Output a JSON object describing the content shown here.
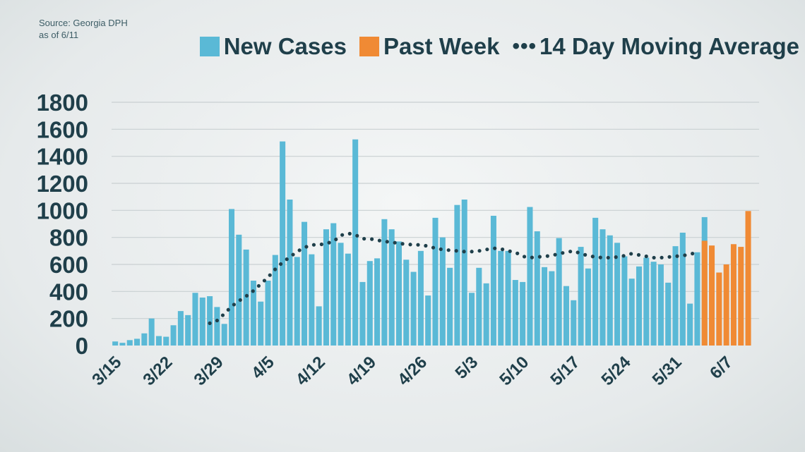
{
  "source": {
    "line1": "Source: Georgia DPH",
    "line2": "as of 6/11"
  },
  "legend": {
    "new_cases": "New Cases",
    "past_week": "Past Week",
    "moving_avg": "14 Day Moving Average",
    "dots": "•••"
  },
  "colors": {
    "new_cases": "#5ab9d6",
    "past_week": "#f08a34",
    "moving_avg": "#1f3f4a",
    "grid": "#c9d0d2"
  },
  "chart_data": {
    "type": "bar",
    "title": "",
    "xlabel": "",
    "ylabel": "",
    "ylim": [
      0,
      1800
    ],
    "yticks": [
      0,
      200,
      400,
      600,
      800,
      1000,
      1200,
      1400,
      1600,
      1800
    ],
    "grid": true,
    "legend_position": "top-right",
    "x_tick_labels": [
      "3/15",
      "3/22",
      "3/29",
      "4/5",
      "4/12",
      "4/19",
      "4/26",
      "5/3",
      "5/10",
      "5/17",
      "5/24",
      "5/31",
      "6/7"
    ],
    "start_date": "3/15",
    "series": [
      {
        "name": "New Cases",
        "values": [
          30,
          20,
          40,
          50,
          90,
          200,
          70,
          65,
          150,
          255,
          225,
          390,
          355,
          365,
          285,
          160,
          1010,
          820,
          710,
          480,
          325,
          480,
          670,
          1510,
          1080,
          655,
          915,
          675,
          290,
          860,
          905,
          760,
          680,
          1525,
          470,
          625,
          645,
          935,
          860,
          770,
          635,
          545,
          700,
          370,
          945,
          800,
          575,
          1040,
          1080,
          390,
          575,
          460,
          960,
          700,
          700,
          485,
          470,
          1025,
          845,
          580,
          550,
          795,
          440,
          335,
          730,
          570,
          945,
          860,
          815,
          760,
          660,
          495,
          585,
          650,
          620,
          600,
          465,
          735,
          835,
          310,
          690,
          950
        ]
      },
      {
        "name": "Past Week",
        "start": "6/4",
        "values": [
          775,
          740,
          540,
          600,
          750,
          730,
          995
        ]
      },
      {
        "name": "14 Day Moving Average",
        "start": "3/28",
        "values": [
          165,
          185,
          235,
          290,
          330,
          365,
          405,
          455,
          505,
          565,
          615,
          655,
          695,
          725,
          745,
          745,
          755,
          770,
          815,
          830,
          820,
          790,
          790,
          780,
          770,
          765,
          755,
          750,
          745,
          745,
          735,
          720,
          710,
          705,
          700,
          695,
          695,
          700,
          710,
          720,
          715,
          700,
          690,
          660,
          650,
          655,
          660,
          665,
          680,
          690,
          700,
          680,
          665,
          655,
          650,
          650,
          655,
          665,
          680,
          670,
          660,
          650,
          650,
          655,
          660,
          665,
          675,
          690
        ]
      }
    ]
  }
}
